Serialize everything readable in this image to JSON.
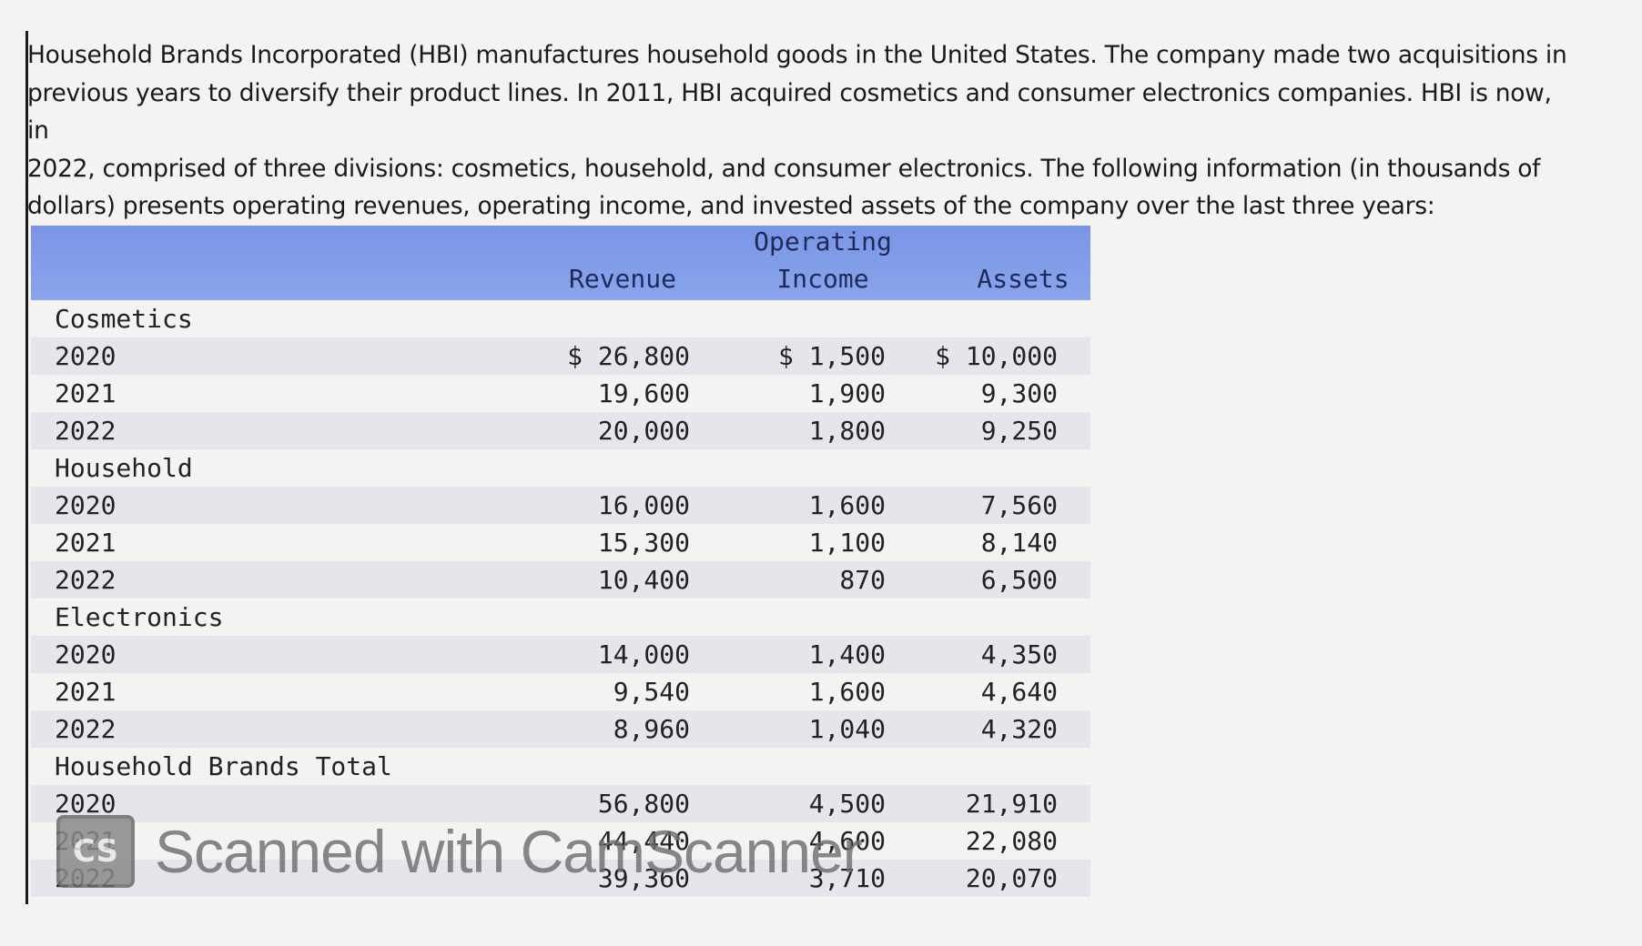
{
  "intro": {
    "lines": [
      "Household Brands Incorporated (HBI) manufactures household goods in the United States. The company made two acquisitions in",
      "previous years to diversify their product lines. In 2011, HBI acquired cosmetics and consumer electronics companies. HBI is now, in",
      "2022, comprised of three divisions: cosmetics, household, and consumer electronics. The following information (in thousands of",
      "dollars) presents operating revenues, operating income, and invested assets of the company over the last three years:"
    ]
  },
  "table": {
    "headers": {
      "revenue": "Revenue",
      "operating_line1": "Operating",
      "operating_line2": "Income",
      "assets": "Assets"
    },
    "rows": [
      {
        "label": "Cosmetics",
        "revenue": "",
        "income": "",
        "assets": "",
        "band": false
      },
      {
        "label": "2020",
        "revenue": "$ 26,800",
        "income": "$ 1,500",
        "assets": "$ 10,000",
        "band": true
      },
      {
        "label": "2021",
        "revenue": "19,600",
        "income": "1,900",
        "assets": "9,300",
        "band": false
      },
      {
        "label": "2022",
        "revenue": "20,000",
        "income": "1,800",
        "assets": "9,250",
        "band": true
      },
      {
        "label": "Household",
        "revenue": "",
        "income": "",
        "assets": "",
        "band": false
      },
      {
        "label": "2020",
        "revenue": "16,000",
        "income": "1,600",
        "assets": "7,560",
        "band": true
      },
      {
        "label": "2021",
        "revenue": "15,300",
        "income": "1,100",
        "assets": "8,140",
        "band": false
      },
      {
        "label": "2022",
        "revenue": "10,400",
        "income": "870",
        "assets": "6,500",
        "band": true
      },
      {
        "label": "Electronics",
        "revenue": "",
        "income": "",
        "assets": "",
        "band": false
      },
      {
        "label": "2020",
        "revenue": "14,000",
        "income": "1,400",
        "assets": "4,350",
        "band": true
      },
      {
        "label": "2021",
        "revenue": "9,540",
        "income": "1,600",
        "assets": "4,640",
        "band": false
      },
      {
        "label": "2022",
        "revenue": "8,960",
        "income": "1,040",
        "assets": "4,320",
        "band": true
      },
      {
        "label": "Household Brands Total",
        "revenue": "",
        "income": "",
        "assets": "",
        "band": false
      },
      {
        "label": "2020",
        "revenue": "56,800",
        "income": "4,500",
        "assets": "21,910",
        "band": true
      },
      {
        "label": "2021",
        "revenue": "44,440",
        "income": "4,600",
        "assets": "22,080",
        "band": false
      },
      {
        "label": "2022",
        "revenue": "39,360",
        "income": "3,710",
        "assets": "20,070",
        "band": true
      }
    ]
  },
  "watermark": {
    "logo": "CS",
    "text": "Scanned with CamScanner"
  },
  "colors": {
    "header_bg": "#7a95e6",
    "band_bg": "#e7e5ec",
    "page_bg": "#f4f3f1"
  }
}
